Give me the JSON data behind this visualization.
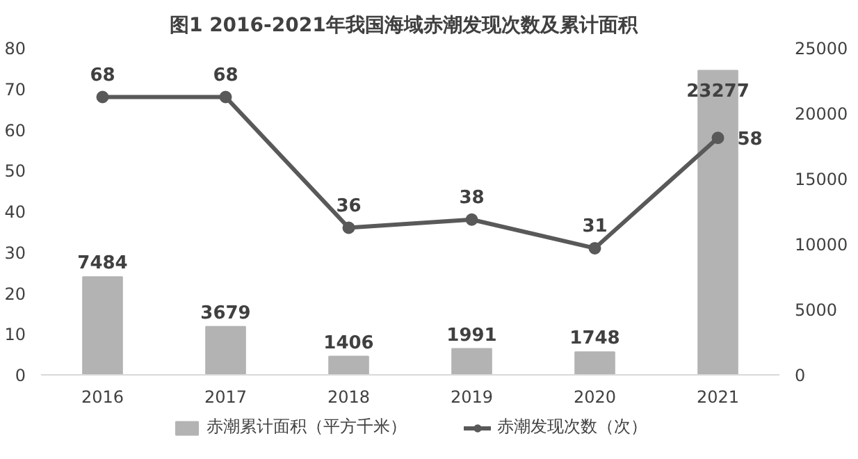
{
  "chart_data": {
    "type": "bar",
    "title": "图1   2016-2021年我国海域赤潮发现次数及累计面积",
    "categories": [
      "2016",
      "2017",
      "2018",
      "2019",
      "2020",
      "2021"
    ],
    "series": [
      {
        "name": "赤潮累计面积（平方千米）",
        "axis": "y2",
        "color": "#b3b3b3",
        "values": [
          7484,
          3679,
          1406,
          1991,
          1748,
          23277
        ]
      },
      {
        "name": "赤潮发现次数（次）",
        "type": "line",
        "axis": "y",
        "color": "#595959",
        "values": [
          68,
          68,
          36,
          38,
          31,
          58
        ]
      }
    ],
    "ylim": [
      0,
      80
    ],
    "yticks": [
      0,
      10,
      20,
      30,
      40,
      50,
      60,
      70,
      80
    ],
    "y2lim": [
      0,
      25000
    ],
    "y2ticks": [
      0,
      5000,
      10000,
      15000,
      20000,
      25000
    ],
    "data_labels": true,
    "legend": "bottom",
    "marker": "circle",
    "grid": false
  }
}
